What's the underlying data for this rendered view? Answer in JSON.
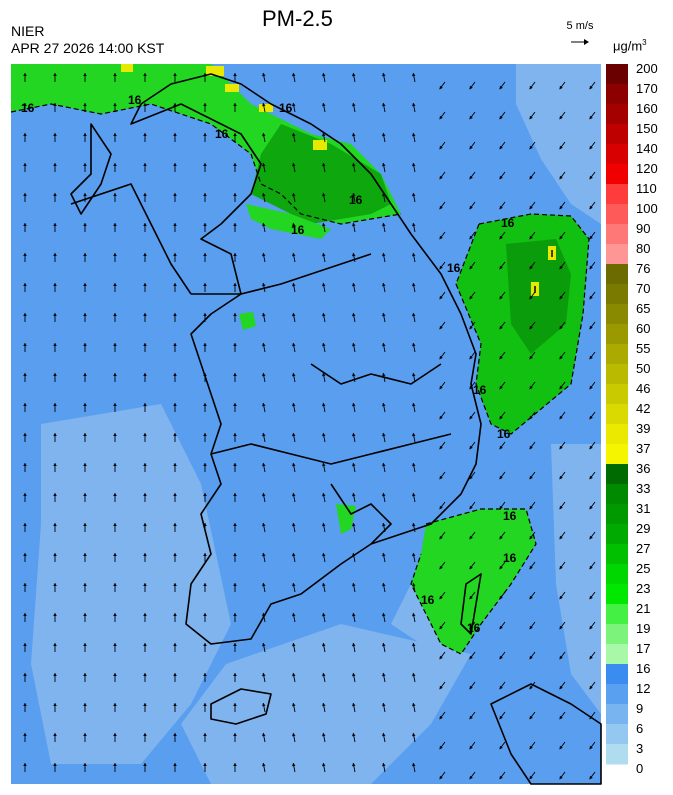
{
  "header": {
    "agency": "NIER",
    "datetime": "APR 27 2026 14:00 KST",
    "title": "PM-2.5",
    "wind_scale": "5 m/s",
    "unit_base": "μg/m",
    "unit_exp": "3"
  },
  "legend": {
    "labels": [
      "200",
      "170",
      "160",
      "150",
      "140",
      "120",
      "110",
      "100",
      "90",
      "80",
      "76",
      "70",
      "65",
      "60",
      "55",
      "50",
      "46",
      "42",
      "39",
      "37",
      "36",
      "33",
      "31",
      "29",
      "27",
      "25",
      "23",
      "21",
      "19",
      "17",
      "16",
      "12",
      "9",
      "6",
      "3",
      "0"
    ],
    "colors": [
      "#6b0000",
      "#8c0000",
      "#a50000",
      "#be0000",
      "#d80000",
      "#f00000",
      "#ff3c3c",
      "#ff5a5a",
      "#ff7878",
      "#ff9696",
      "#6b6b00",
      "#7a7a00",
      "#8a8a00",
      "#9a9a00",
      "#aaaa00",
      "#baba00",
      "#caca00",
      "#dada00",
      "#eaea00",
      "#f5f500",
      "#006b00",
      "#008a00",
      "#009a00",
      "#00aa00",
      "#00c000",
      "#00d600",
      "#00e800",
      "#44f044",
      "#7cf47c",
      "#a8f8a8",
      "#3a8cf0",
      "#5aa0f0",
      "#78b4f0",
      "#94c8f0",
      "#b0dcf0"
    ]
  },
  "map": {
    "background_color": "#5a9eef",
    "contour_label": "16",
    "levels": [
      "16"
    ],
    "highlight_label": "I"
  }
}
